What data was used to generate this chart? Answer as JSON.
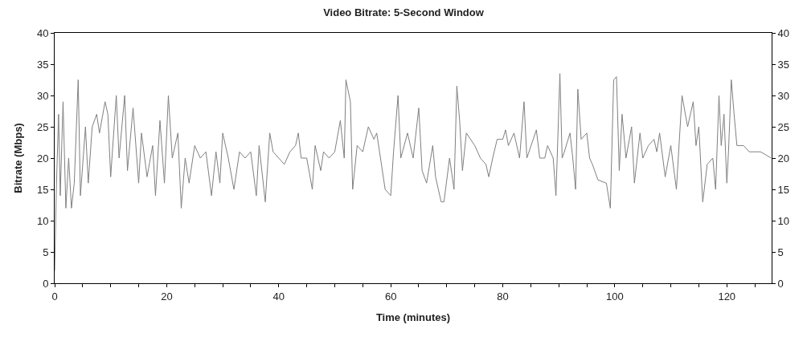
{
  "chart_data": {
    "type": "line",
    "title": "Video Bitrate: 5-Second Window",
    "xlabel": "Time (minutes)",
    "ylabel": "Bitrate (Mbps)",
    "xlim": [
      0,
      128
    ],
    "ylim": [
      0,
      40
    ],
    "y2lim": [
      0,
      40
    ],
    "xticks": [
      0,
      {
        "value": 5,
        "label": null
      },
      {
        "value": 10,
        "label": null
      },
      {
        "value": 15,
        "label": null
      },
      20,
      {
        "value": 25,
        "label": null
      },
      {
        "value": 30,
        "label": null
      },
      {
        "value": 35,
        "label": null
      },
      40,
      {
        "value": 45,
        "label": null
      },
      {
        "value": 50,
        "label": null
      },
      {
        "value": 55,
        "label": null
      },
      60,
      {
        "value": 65,
        "label": null
      },
      {
        "value": 70,
        "label": null
      },
      {
        "value": 75,
        "label": null
      },
      80,
      {
        "value": 85,
        "label": null
      },
      {
        "value": 90,
        "label": null
      },
      {
        "value": 95,
        "label": null
      },
      100,
      {
        "value": 105,
        "label": null
      },
      {
        "value": 110,
        "label": null
      },
      {
        "value": 115,
        "label": null
      },
      120,
      {
        "value": 125,
        "label": null
      }
    ],
    "yticks": [
      0,
      5,
      10,
      15,
      20,
      25,
      30,
      35,
      40
    ],
    "y2ticks": [
      0,
      5,
      10,
      15,
      20,
      25,
      30,
      35,
      40
    ],
    "marker": "none",
    "line_style": "solid",
    "series": [
      {
        "color": "#808080",
        "x": [
          0,
          0.3,
          0.7,
          1,
          1.5,
          2,
          2.5,
          3,
          3.5,
          4.2,
          4.6,
          5.5,
          6,
          6.7,
          7.5,
          8,
          9,
          9.5,
          10,
          11,
          11.5,
          12.5,
          13,
          14,
          15,
          15.5,
          16.5,
          17.5,
          18,
          18.8,
          19.6,
          20.3,
          21,
          22,
          22.6,
          23.3,
          24,
          25,
          26,
          27,
          28,
          28.8,
          29.5,
          30,
          31,
          32,
          33,
          34,
          35,
          36,
          36.5,
          37.6,
          38.4,
          39,
          40,
          41,
          42,
          43,
          43.5,
          44,
          45,
          46,
          46.5,
          47.5,
          48,
          49,
          50,
          51,
          51.7,
          52,
          52.8,
          53.2,
          54,
          55,
          56,
          57,
          57.5,
          58,
          59,
          60,
          60.5,
          61.3,
          61.8,
          63,
          64,
          65,
          65.6,
          66.4,
          67.5,
          68,
          69,
          69.5,
          70.5,
          71.3,
          71.8,
          72.3,
          72.8,
          73.5,
          75,
          76,
          77,
          77.5,
          78.2,
          79,
          80,
          80.5,
          81,
          82,
          83,
          83.8,
          84.3,
          86,
          86.6,
          87.5,
          88,
          89,
          89.5,
          90.2,
          90.6,
          91,
          92,
          92.5,
          93,
          93.4,
          94,
          95,
          95.5,
          96,
          97,
          98.5,
          99.2,
          99.8,
          100.3,
          100.8,
          101.3,
          102,
          103,
          103.5,
          104.5,
          105,
          106,
          107,
          107.5,
          108,
          109,
          110,
          111,
          112,
          113,
          114,
          114.5,
          115,
          115.7,
          116.5,
          117.5,
          118,
          118.6,
          119,
          119.5,
          120,
          120.3,
          120.8,
          121.3,
          121.8,
          123,
          124,
          125,
          126,
          127,
          127.9
        ],
        "values": [
          2,
          15,
          27,
          14,
          29,
          12,
          20,
          12,
          16,
          32.5,
          14,
          25,
          16,
          25,
          27,
          24,
          29,
          27,
          17,
          30,
          20,
          30,
          18,
          28,
          16,
          24,
          17,
          22,
          14,
          26,
          16,
          30,
          20,
          24,
          12,
          20,
          16,
          22,
          20,
          21,
          14,
          21,
          16,
          24,
          20,
          15,
          21,
          20,
          21,
          14,
          22,
          13,
          24,
          21,
          20,
          19,
          21,
          22,
          24,
          20,
          20,
          15,
          22,
          18,
          21,
          20,
          21,
          26,
          20,
          32.5,
          29,
          15,
          22,
          21,
          25,
          23,
          24,
          21,
          15,
          14,
          21,
          30,
          20,
          24,
          20,
          28,
          18,
          16,
          22,
          17,
          13,
          13,
          20,
          15,
          31.5,
          26,
          18,
          24,
          22,
          20,
          19,
          17,
          20,
          23,
          23,
          24.5,
          22,
          24,
          20,
          29,
          20,
          24.5,
          20,
          20,
          22,
          20,
          14,
          33.5,
          20,
          21,
          24,
          20,
          15,
          31,
          23,
          24,
          20,
          19,
          16.5,
          16,
          12,
          32.5,
          33,
          18,
          27,
          20,
          25,
          16,
          24,
          20,
          22,
          23,
          21,
          24,
          17,
          22,
          15,
          30,
          25,
          29,
          22,
          25,
          13,
          19,
          20,
          15,
          30,
          22,
          27,
          16,
          21,
          32.5,
          27,
          22,
          22,
          21,
          21,
          21,
          20.5,
          20
        ]
      }
    ]
  }
}
